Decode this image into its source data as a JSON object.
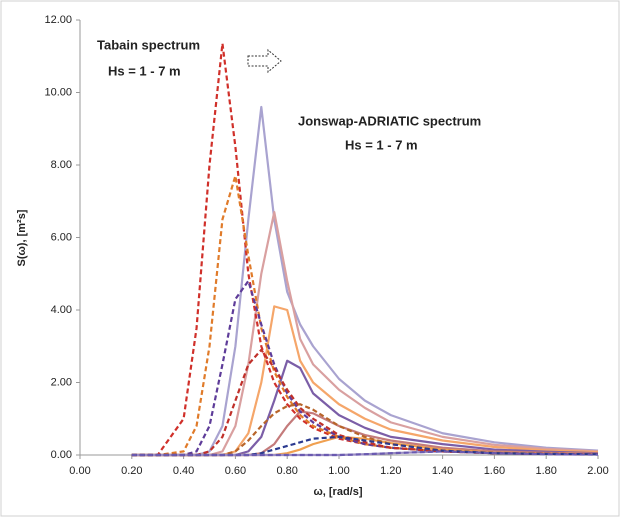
{
  "chart_data": {
    "type": "line",
    "annotations": [
      "Tabain spectrum",
      "Hs = 1 - 7 m",
      "Jonswap-ADRIATIC spectrum",
      "Hs = 1 - 7 m"
    ],
    "x_label": "ω, [rad/s]",
    "y_label": "S(ω), [m²s]",
    "xlim": [
      0,
      2
    ],
    "ylim": [
      0,
      12
    ],
    "xticks": [
      {
        "value": 0,
        "label": "0.00"
      },
      {
        "value": 0.2,
        "label": "0.20"
      },
      {
        "value": 0.4,
        "label": "0.40"
      },
      {
        "value": 0.6,
        "label": "0.60"
      },
      {
        "value": 0.8,
        "label": "0.80"
      },
      {
        "value": 1,
        "label": "1.00"
      },
      {
        "value": 1.2,
        "label": "1.20"
      },
      {
        "value": 1.4,
        "label": "1.40"
      },
      {
        "value": 1.6,
        "label": "1.60"
      },
      {
        "value": 1.8,
        "label": "1.80"
      },
      {
        "value": 2,
        "label": "2.00"
      }
    ],
    "yticks": [
      {
        "value": 0,
        "label": "0.00"
      },
      {
        "value": 2,
        "label": "2.00"
      },
      {
        "value": 4,
        "label": "4.00"
      },
      {
        "value": 6,
        "label": "6.00"
      },
      {
        "value": 8,
        "label": "8.00"
      },
      {
        "value": 10,
        "label": "10.00"
      },
      {
        "value": 12,
        "label": "12.00"
      }
    ],
    "x": [
      0.2,
      0.3,
      0.4,
      0.45,
      0.5,
      0.55,
      0.6,
      0.65,
      0.7,
      0.75,
      0.8,
      0.85,
      0.9,
      1.0,
      1.1,
      1.2,
      1.4,
      1.6,
      1.8,
      2.0
    ],
    "series": [
      {
        "color": "#a9a3d0",
        "dashed": false,
        "values": [
          0,
          0,
          0,
          0,
          0.1,
          0.8,
          3.0,
          6.5,
          9.6,
          6.5,
          4.5,
          3.6,
          3.0,
          2.1,
          1.5,
          1.1,
          0.6,
          0.35,
          0.2,
          0.12
        ]
      },
      {
        "color": "#d9a0a0",
        "dashed": false,
        "values": [
          0,
          0,
          0,
          0,
          0,
          0.1,
          0.8,
          2.5,
          5.0,
          6.7,
          4.8,
          3.2,
          2.5,
          1.8,
          1.3,
          0.9,
          0.5,
          0.28,
          0.17,
          0.1
        ]
      },
      {
        "color": "#f5a66a",
        "dashed": false,
        "values": [
          0,
          0,
          0,
          0,
          0,
          0,
          0.1,
          0.6,
          2.0,
          4.1,
          4.0,
          2.6,
          2.0,
          1.4,
          1.0,
          0.7,
          0.4,
          0.22,
          0.13,
          0.08
        ]
      },
      {
        "color": "#7b5ea7",
        "dashed": false,
        "values": [
          0,
          0,
          0,
          0,
          0,
          0,
          0,
          0.1,
          0.5,
          1.5,
          2.6,
          2.4,
          1.7,
          1.1,
          0.75,
          0.5,
          0.3,
          0.15,
          0.09,
          0.05
        ]
      },
      {
        "color": "#c47b7b",
        "dashed": false,
        "values": [
          0,
          0,
          0,
          0,
          0,
          0,
          0,
          0,
          0.05,
          0.3,
          0.8,
          1.2,
          1.15,
          0.8,
          0.55,
          0.4,
          0.2,
          0.1,
          0.06,
          0.04
        ]
      },
      {
        "color": "#f0a050",
        "dashed": false,
        "values": [
          0,
          0,
          0,
          0,
          0,
          0,
          0,
          0,
          0,
          0,
          0.05,
          0.15,
          0.3,
          0.5,
          0.45,
          0.33,
          0.15,
          0.07,
          0.04,
          0.02
        ]
      },
      {
        "color": "#9b8ec4",
        "dashed": false,
        "values": [
          0,
          0,
          0,
          0,
          0,
          0,
          0,
          0,
          0,
          0,
          0,
          0,
          0,
          0,
          0.02,
          0.05,
          0.1,
          0.06,
          0.03,
          0.02
        ]
      },
      {
        "color": "#d0302a",
        "dashed": true,
        "values": [
          0,
          0,
          1.0,
          3.5,
          8.0,
          11.35,
          8.5,
          5.0,
          3.0,
          2.0,
          1.4,
          1.0,
          0.75,
          0.45,
          0.3,
          0.2,
          0.1,
          0.05,
          0.03,
          0.02
        ]
      },
      {
        "color": "#e07b2a",
        "dashed": true,
        "values": [
          0,
          0,
          0.1,
          0.8,
          3.0,
          6.5,
          7.7,
          5.5,
          3.5,
          2.3,
          1.6,
          1.1,
          0.8,
          0.5,
          0.3,
          0.2,
          0.1,
          0.05,
          0.03,
          0.02
        ]
      },
      {
        "color": "#5e3c99",
        "dashed": true,
        "values": [
          0,
          0,
          0,
          0.1,
          0.8,
          2.5,
          4.3,
          4.8,
          3.6,
          2.5,
          1.7,
          1.2,
          0.9,
          0.5,
          0.3,
          0.2,
          0.1,
          0.05,
          0.03,
          0.02
        ]
      },
      {
        "color": "#c0302a",
        "dashed": true,
        "values": [
          0,
          0,
          0,
          0,
          0.1,
          0.5,
          1.5,
          2.5,
          2.9,
          2.4,
          1.8,
          1.3,
          1.0,
          0.55,
          0.35,
          0.2,
          0.1,
          0.05,
          0.03,
          0.02
        ]
      },
      {
        "color": "#b8652a",
        "dashed": true,
        "values": [
          0,
          0,
          0,
          0,
          0,
          0,
          0.1,
          0.4,
          0.8,
          1.15,
          1.35,
          1.4,
          1.25,
          0.8,
          0.5,
          0.3,
          0.12,
          0.06,
          0.03,
          0.02
        ]
      },
      {
        "color": "#2b3a8f",
        "dashed": true,
        "values": [
          0,
          0,
          0,
          0,
          0,
          0,
          0,
          0,
          0.05,
          0.15,
          0.25,
          0.35,
          0.45,
          0.5,
          0.4,
          0.3,
          0.12,
          0.05,
          0.03,
          0.02
        ]
      },
      {
        "color": "#6a5ab0",
        "dashed": true,
        "values": [
          0,
          0,
          0,
          0,
          0,
          0,
          0,
          0,
          0,
          0,
          0,
          0,
          0,
          0,
          0.02,
          0.05,
          0.1,
          0.05,
          0.02,
          0.01
        ]
      }
    ]
  }
}
